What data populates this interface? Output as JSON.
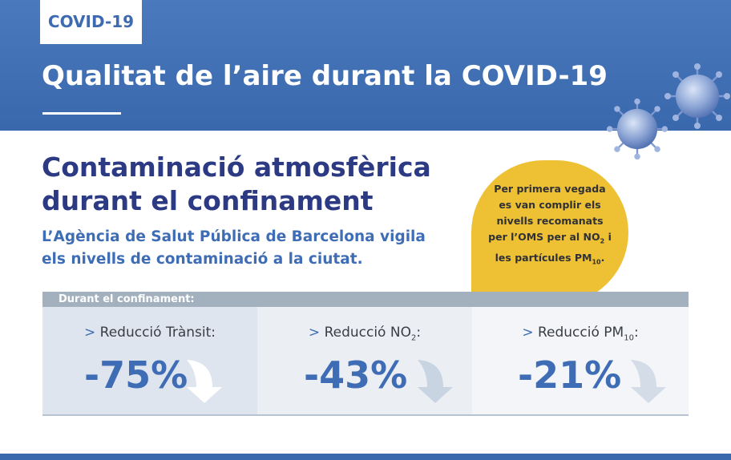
{
  "header": {
    "tag": "COVID-19",
    "title": "Qualitat de l’aire durant la COVID-19"
  },
  "section": {
    "title_lines": [
      "Contaminació atmosfèrica",
      "durant el confinament"
    ],
    "subtitle_lines": [
      "L’Agència de Salut Pública de Barcelona vigila",
      "els nivells de contaminació a la ciutat."
    ]
  },
  "bubble": {
    "line1": "Per primera vegada",
    "line2": "es van complir els",
    "line3": "nivells  recomanats",
    "line4_pre": "per l’OMS per al NO",
    "line4_sub": "2",
    "line4_post": " i",
    "line5_pre": "les partícules PM",
    "line5_sub": "10",
    "line5_post": "."
  },
  "panel": {
    "header": "Durant el confinament:",
    "stats": [
      {
        "prefix": ">",
        "label": "Reducció Trànsit:",
        "sub": "",
        "post": "",
        "value": "-75%"
      },
      {
        "prefix": ">",
        "label": "Reducció NO",
        "sub": "2",
        "post": ":",
        "value": "-43%"
      },
      {
        "prefix": ">",
        "label": "Reducció PM",
        "sub": "10",
        "post": ":",
        "value": "-21%"
      }
    ]
  },
  "colors": {
    "header_blue": "#3a68ad",
    "title_navy": "#2c3a84",
    "accent_blue": "#3f6db5",
    "bubble_yellow": "#eec034"
  },
  "icons": [
    "virus-icon",
    "down-arrow-icon"
  ]
}
